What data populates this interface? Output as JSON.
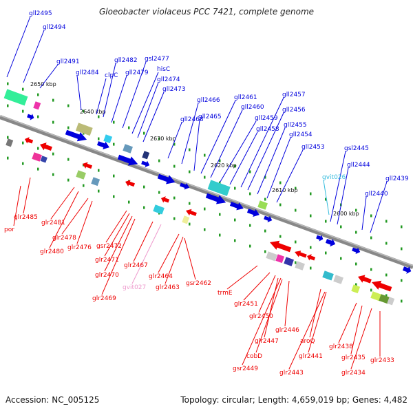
{
  "header": {
    "title": "Gloeobacter violaceus PCC 7421, complete genome"
  },
  "footer": {
    "accession": "Accession: NC_005125",
    "topology": "Topology: circular; Length: 4,659,019 bp; Genes: 4,482"
  },
  "colors": {
    "forward": "#0000dd",
    "reverse": "#ee0000",
    "rna_forward": "#33bbdd",
    "rna_reverse": "#ee99cc",
    "backbone": "#888888",
    "tick": "#229922"
  },
  "scale": {
    "ticks": [
      "2650 kbp",
      "2640 kbp",
      "2630 kbp",
      "2620 kbp",
      "2610 kbp",
      "2600 kbp"
    ]
  },
  "labels": {
    "top": [
      "gll2495",
      "gll2494",
      "gll2491",
      "gll2484",
      "clpC",
      "gll2482",
      "gll2479",
      "gsl2477",
      "hisC",
      "gll2474",
      "gll2473",
      "gll2468",
      "gll2466",
      "gll2465",
      "gll2461",
      "gll2460",
      "gll2459",
      "gll2458",
      "gll2457",
      "gll2456",
      "gll2455",
      "gll2454",
      "gll2453",
      "gvit026",
      "gsl2445",
      "gll2444",
      "gll2440",
      "gll2439"
    ],
    "bottom": [
      "glr2485",
      "por",
      "glr2481",
      "glr2480",
      "glr2478",
      "glr2476",
      "gsr2472",
      "glr2471",
      "glr2470",
      "glr2469",
      "glr2467",
      "gvit027",
      "glr2464",
      "glr2463",
      "gsr2462",
      "trmE",
      "glr2451",
      "glr2450",
      "glr2446",
      "glr2447",
      "cobD",
      "gsr2449",
      "aroQ",
      "glr2441",
      "glr2443",
      "glr2438",
      "glr2435",
      "glr2434",
      "glr2433"
    ]
  }
}
